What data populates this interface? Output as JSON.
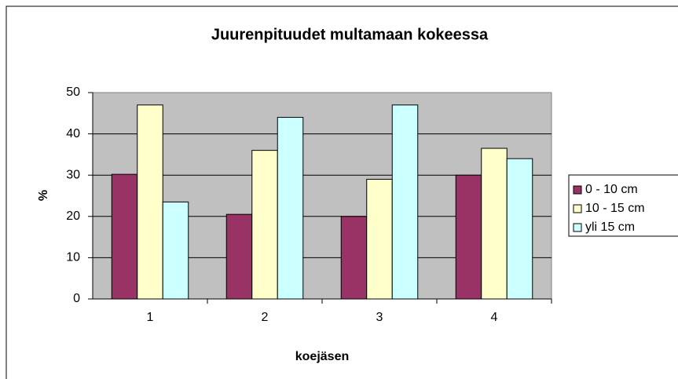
{
  "chart_data": {
    "type": "bar",
    "title": "Juurenpituudet multamaan kokeessa",
    "x_label": "koejäsen",
    "y_label": "%",
    "categories": [
      "1",
      "2",
      "3",
      "4"
    ],
    "series": [
      {
        "name": "0 - 10 cm",
        "color": "#993366",
        "values": [
          30.2,
          20.5,
          20,
          30
        ]
      },
      {
        "name": "10 - 15 cm",
        "color": "#ffffcc",
        "values": [
          47,
          36,
          29,
          36.5
        ]
      },
      {
        "name": "yli 15 cm",
        "color": "#ccffff",
        "values": [
          23.5,
          44,
          47,
          34
        ]
      }
    ],
    "ylim": [
      0,
      50
    ],
    "yticks": [
      0,
      10,
      20,
      30,
      40,
      50
    ],
    "grid": true,
    "legend": "right"
  }
}
